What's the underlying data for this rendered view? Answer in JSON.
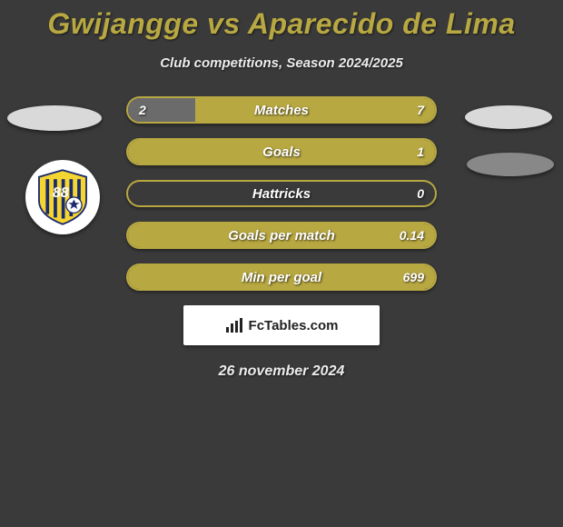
{
  "title": "Gwijangge vs Aparecido de Lima",
  "subtitle": "Club competitions, Season 2024/2025",
  "date": "26 november 2024",
  "footer_brand": "FcTables.com",
  "colors": {
    "bar_border": "#b8a842",
    "left_fill": "#6b6b6b",
    "right_fill": "#b8a842",
    "title_color": "#b8a842",
    "background": "#3a3a3a"
  },
  "bars": [
    {
      "label": "Matches",
      "left_val": "2",
      "right_val": "7",
      "left_pct": 22,
      "right_pct": 78
    },
    {
      "label": "Goals",
      "left_val": "",
      "right_val": "1",
      "left_pct": 0,
      "right_pct": 100
    },
    {
      "label": "Hattricks",
      "left_val": "",
      "right_val": "0",
      "left_pct": 0,
      "right_pct": 0
    },
    {
      "label": "Goals per match",
      "left_val": "",
      "right_val": "0.14",
      "left_pct": 0,
      "right_pct": 100
    },
    {
      "label": "Min per goal",
      "left_val": "",
      "right_val": "699",
      "left_pct": 0,
      "right_pct": 100
    }
  ]
}
